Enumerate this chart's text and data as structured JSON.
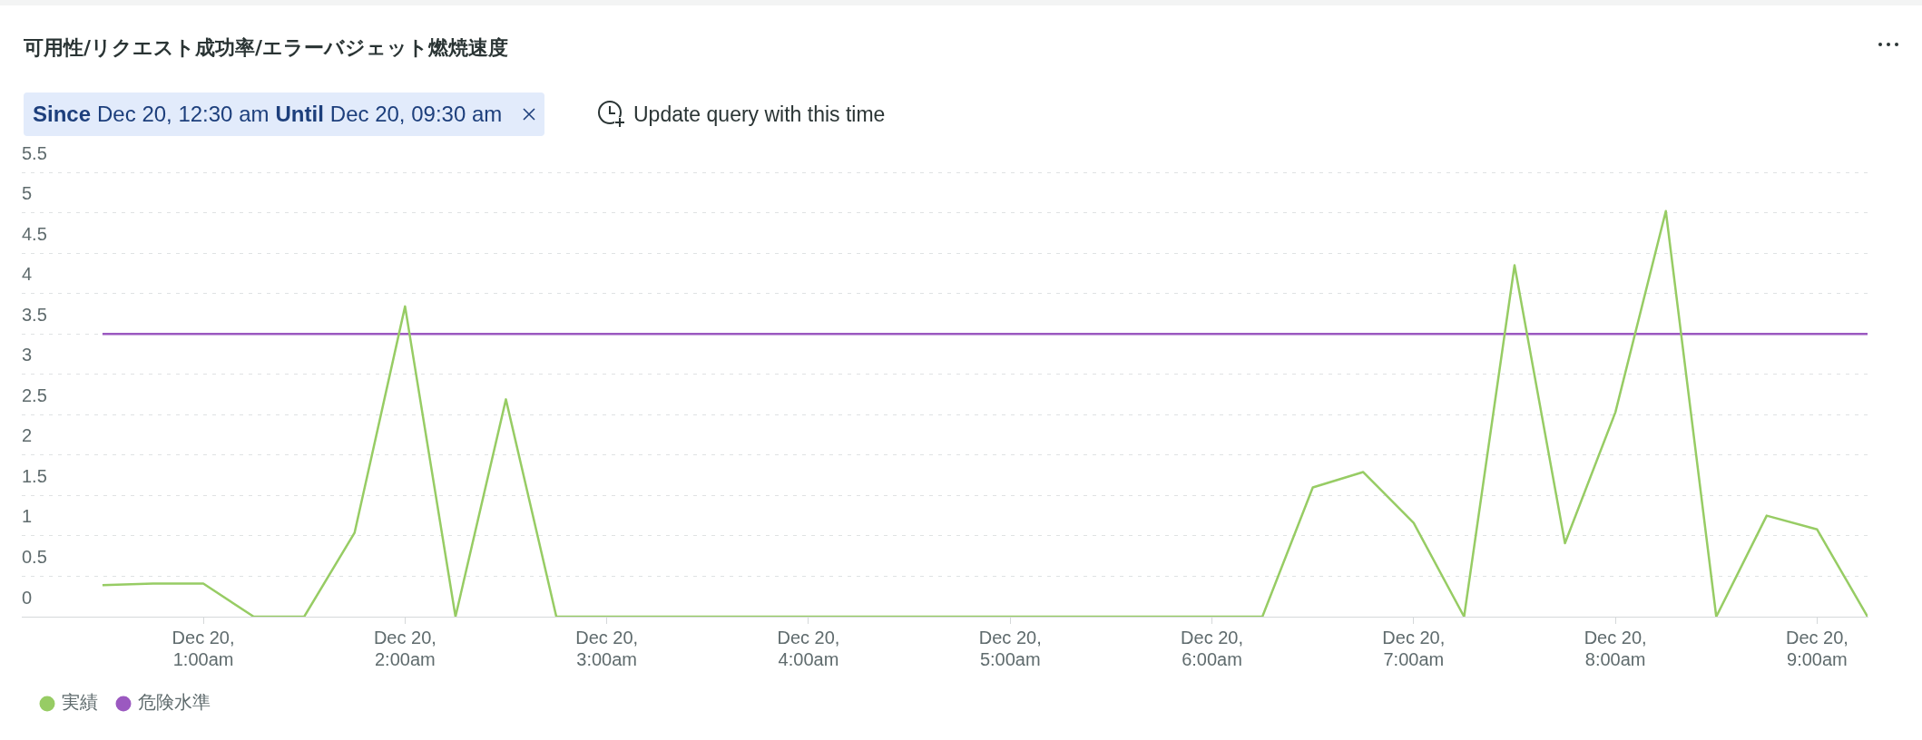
{
  "chart_data": {
    "type": "line",
    "title": "可用性/リクエスト成功率/エラーバジェット燃焼速度",
    "annotations": [
      "Since",
      "Dec 20, 12:30 am",
      "Until",
      "Dec 20, 09:30 am",
      "Update query with this time"
    ],
    "x": [
      "--12-20T00:30",
      "--12-20T00:45",
      "--12-20T01:00",
      "--12-20T01:15",
      "--12-20T01:30",
      "--12-20T01:45",
      "--12-20T02:00",
      "--12-20T02:15",
      "--12-20T02:30",
      "--12-20T02:45",
      "--12-20T03:00",
      "--12-20T03:15",
      "--12-20T03:30",
      "--12-20T03:45",
      "--12-20T04:00",
      "--12-20T04:15",
      "--12-20T04:30",
      "--12-20T04:45",
      "--12-20T05:00",
      "--12-20T05:15",
      "--12-20T05:30",
      "--12-20T05:45",
      "--12-20T06:00",
      "--12-20T06:15",
      "--12-20T06:30",
      "--12-20T06:45",
      "--12-20T07:00",
      "--12-20T07:15",
      "--12-20T07:30",
      "--12-20T07:45",
      "--12-20T08:00",
      "--12-20T08:15",
      "--12-20T08:30",
      "--12-20T08:45",
      "--12-20T09:00",
      "--12-20T09:15"
    ],
    "series": [
      {
        "name": "実績",
        "color": "#97cc64",
        "values": [
          0.39,
          0.41,
          0.41,
          0,
          0,
          1.04,
          3.84,
          0,
          2.69,
          0,
          0,
          0,
          0,
          0,
          0,
          0,
          0,
          0,
          0,
          0,
          0,
          0,
          0,
          0,
          1.6,
          1.79,
          1.16,
          0,
          4.35,
          0.91,
          2.53,
          5.02,
          0,
          1.25,
          1.08,
          0
        ]
      },
      {
        "name": "危険水準",
        "color": "#9b59c0",
        "values": [
          3.5,
          3.5,
          3.5,
          3.5,
          3.5,
          3.5,
          3.5,
          3.5,
          3.5,
          3.5,
          3.5,
          3.5,
          3.5,
          3.5,
          3.5,
          3.5,
          3.5,
          3.5,
          3.5,
          3.5,
          3.5,
          3.5,
          3.5,
          3.5,
          3.5,
          3.5,
          3.5,
          3.5,
          3.5,
          3.5,
          3.5,
          3.5,
          3.5,
          3.5,
          3.5,
          3.5
        ]
      }
    ],
    "xlim": [
      "--12-20T00:06",
      "--12-20T09:15"
    ],
    "xticks": [
      {
        "value": "--12-20T01:00",
        "label": "Dec 20, 1:00am"
      },
      {
        "value": "--12-20T02:00",
        "label": "Dec 20, 2:00am"
      },
      {
        "value": "--12-20T03:00",
        "label": "Dec 20, 3:00am"
      },
      {
        "value": "--12-20T04:00",
        "label": "Dec 20, 4:00am"
      },
      {
        "value": "--12-20T05:00",
        "label": "Dec 20, 5:00am"
      },
      {
        "value": "--12-20T06:00",
        "label": "Dec 20, 6:00am"
      },
      {
        "value": "--12-20T07:00",
        "label": "Dec 20, 7:00am"
      },
      {
        "value": "--12-20T08:00",
        "label": "Dec 20, 8:00am"
      },
      {
        "value": "--12-20T09:00",
        "label": "Dec 20, 9:00am"
      }
    ],
    "ylim": [
      0,
      5.5
    ],
    "yticks": [
      0,
      0.5,
      1,
      1.5,
      2,
      2.5,
      3,
      3.5,
      4,
      4.5,
      5,
      5.5
    ],
    "grid": "y",
    "legend": "bottom left",
    "marker": "none",
    "line_style": "solid"
  }
}
